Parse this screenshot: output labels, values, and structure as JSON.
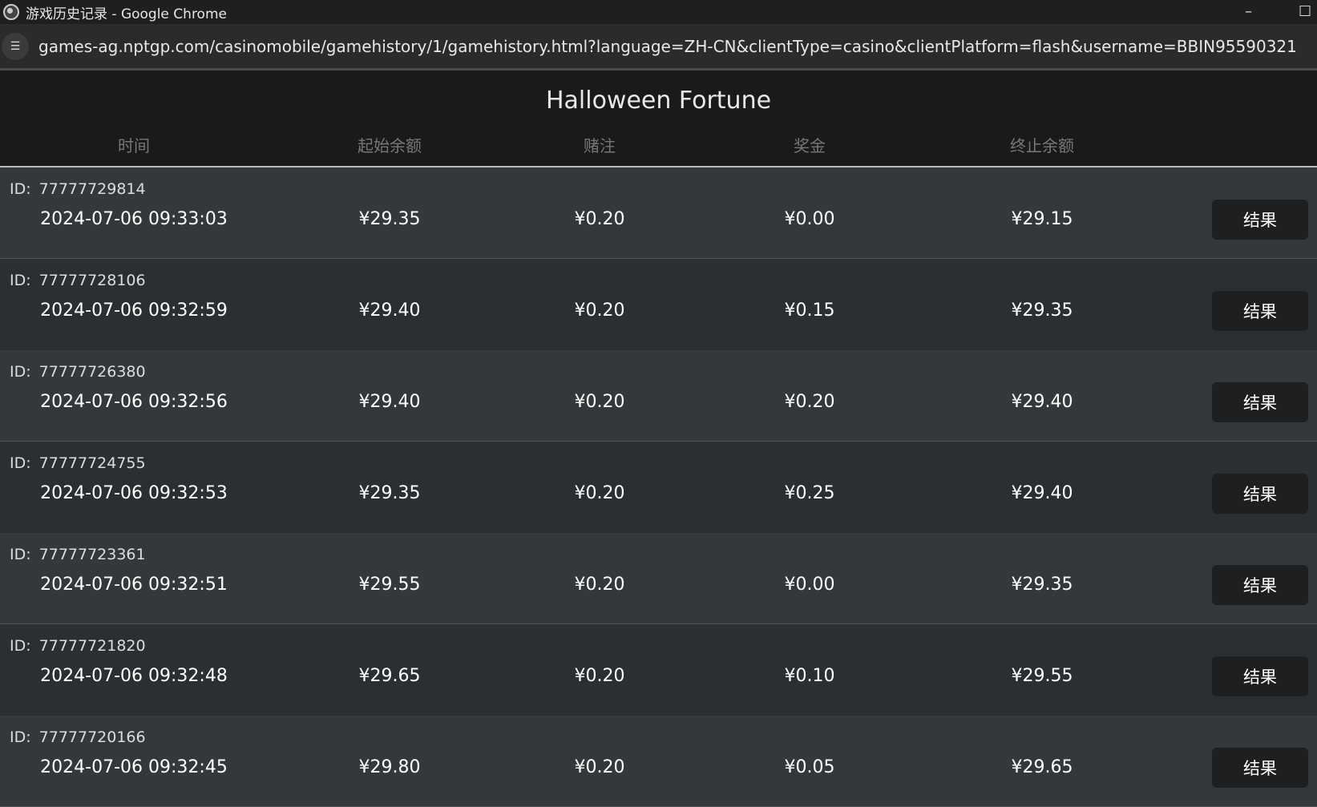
{
  "window": {
    "title": "游戏历史记录 - Google Chrome",
    "minimize": "–",
    "maximize": "☐"
  },
  "address": {
    "url": "games-ag.nptgp.com/casinomobile/gamehistory/1/gamehistory.html?language=ZH-CN&clientType=casino&clientPlatform=flash&username=BBIN95590321"
  },
  "game": {
    "title": "Halloween Fortune"
  },
  "columns": [
    "时间",
    "起始余额",
    "赌注",
    "奖金",
    "终止余额"
  ],
  "id_label": "ID:",
  "result_label": "结果",
  "rows": [
    {
      "id": "77777729814",
      "time": "2024-07-06 09:33:03",
      "start": "¥29.35",
      "bet": "¥0.20",
      "win": "¥0.00",
      "end": "¥29.15"
    },
    {
      "id": "77777728106",
      "time": "2024-07-06 09:32:59",
      "start": "¥29.40",
      "bet": "¥0.20",
      "win": "¥0.15",
      "end": "¥29.35"
    },
    {
      "id": "77777726380",
      "time": "2024-07-06 09:32:56",
      "start": "¥29.40",
      "bet": "¥0.20",
      "win": "¥0.20",
      "end": "¥29.40"
    },
    {
      "id": "77777724755",
      "time": "2024-07-06 09:32:53",
      "start": "¥29.35",
      "bet": "¥0.20",
      "win": "¥0.25",
      "end": "¥29.40"
    },
    {
      "id": "77777723361",
      "time": "2024-07-06 09:32:51",
      "start": "¥29.55",
      "bet": "¥0.20",
      "win": "¥0.00",
      "end": "¥29.35"
    },
    {
      "id": "77777721820",
      "time": "2024-07-06 09:32:48",
      "start": "¥29.65",
      "bet": "¥0.20",
      "win": "¥0.10",
      "end": "¥29.55"
    },
    {
      "id": "77777720166",
      "time": "2024-07-06 09:32:45",
      "start": "¥29.80",
      "bet": "¥0.20",
      "win": "¥0.05",
      "end": "¥29.65"
    }
  ]
}
